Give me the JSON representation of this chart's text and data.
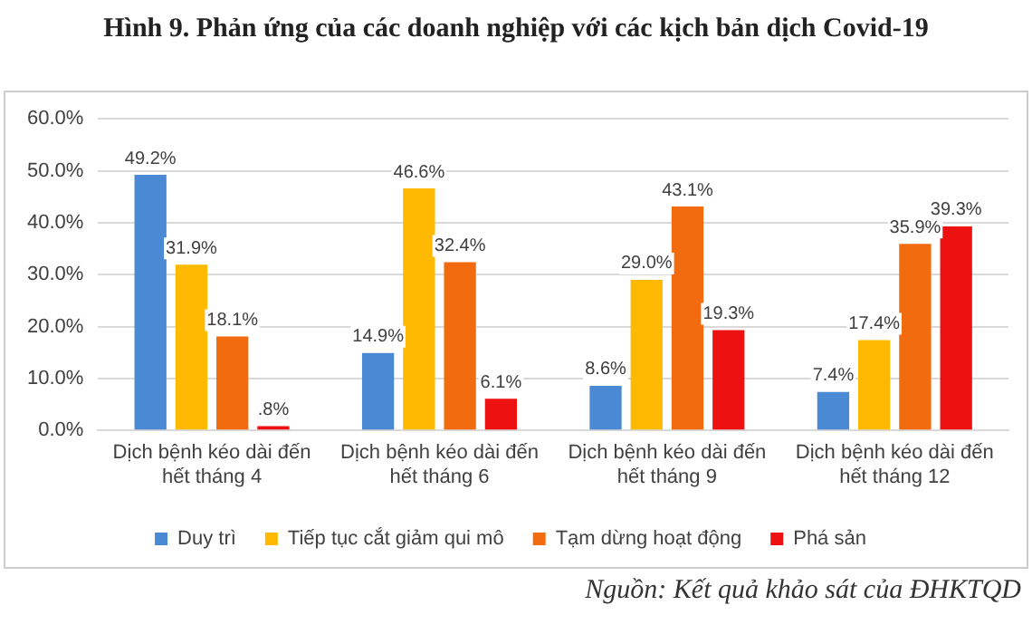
{
  "chart_data": {
    "type": "bar",
    "title": "Hình 9. Phản ứng của các doanh nghiệp với các kịch bản dịch Covid-19",
    "categories": [
      "Dịch bệnh kéo dài đến hết tháng 4",
      "Dịch bệnh kéo dài đến hết tháng 6",
      "Dịch bệnh kéo dài đến hết tháng 9",
      "Dịch bệnh kéo dài đến hết tháng 12"
    ],
    "series": [
      {
        "name": "Duy trì",
        "color": "#4a8ad4",
        "values": [
          49.2,
          14.9,
          8.6,
          7.4
        ],
        "value_labels": [
          "49.2%",
          "14.9%",
          "8.6%",
          "7.4%"
        ]
      },
      {
        "name": "Tiếp tục cắt giảm qui mô",
        "color": "#ffb900",
        "values": [
          31.9,
          46.6,
          29.0,
          17.4
        ],
        "value_labels": [
          "31.9%",
          "46.6%",
          "29.0%",
          "17.4%"
        ]
      },
      {
        "name": "Tạm dừng hoạt động",
        "color": "#f26b0f",
        "values": [
          18.1,
          32.4,
          43.1,
          35.9
        ],
        "value_labels": [
          "18.1%",
          "32.4%",
          "43.1%",
          "35.9%"
        ]
      },
      {
        "name": "Phá sản",
        "color": "#ee1111",
        "values": [
          0.8,
          6.1,
          19.3,
          39.3
        ],
        "value_labels": [
          ".8%",
          "6.1%",
          "19.3%",
          "39.3%"
        ]
      }
    ],
    "ylim": [
      0,
      60
    ],
    "yticks": [
      {
        "value": 0,
        "label": "0.0%"
      },
      {
        "value": 10,
        "label": "10.0%"
      },
      {
        "value": 20,
        "label": "20.0%"
      },
      {
        "value": 30,
        "label": "30.0%"
      },
      {
        "value": 40,
        "label": "40.0%"
      },
      {
        "value": 50,
        "label": "50.0%"
      },
      {
        "value": 60,
        "label": "60.0%"
      }
    ],
    "grid": "y",
    "legend": "bottom",
    "annotations": [
      "Nguồn: Kết quả khảo sát của ĐHKTQD"
    ]
  }
}
